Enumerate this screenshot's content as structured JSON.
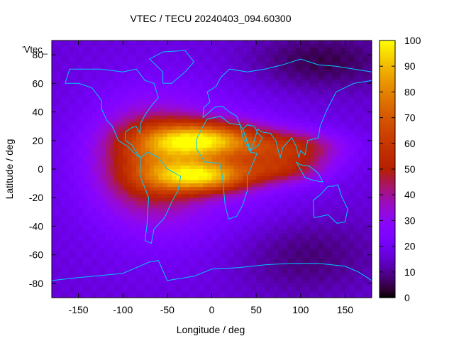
{
  "chart_data": {
    "type": "heatmap",
    "title": "VTEC / TECU 20240403_094.60300",
    "xlabel": "Longitude / deg",
    "ylabel": "Latitude / deg",
    "legend_label": "'Vtec_",
    "xlim": [
      -180,
      180
    ],
    "ylim": [
      -90,
      90
    ],
    "xticks": [
      -150,
      -100,
      -50,
      0,
      50,
      100,
      150
    ],
    "xtick_labels": [
      "-150",
      "-100",
      "-50",
      "0",
      "50",
      "100",
      "150"
    ],
    "yticks": [
      -80,
      -60,
      -40,
      -20,
      0,
      20,
      40,
      60,
      80
    ],
    "ytick_labels": [
      "-80",
      "-60",
      "-40",
      "-20",
      "0",
      "20",
      "40",
      "60",
      "80"
    ],
    "colorbar": {
      "range": [
        0,
        100
      ],
      "ticks": [
        0,
        10,
        20,
        30,
        40,
        50,
        60,
        70,
        80,
        90,
        100
      ],
      "tick_labels": [
        "0",
        "10",
        "20",
        "30",
        "40",
        "50",
        "60",
        "70",
        "80",
        "90",
        "100"
      ],
      "palette": "black-purple-red-orange-yellow"
    },
    "grid": {
      "lon_step": 5,
      "lat_step": 2.5,
      "background_tecu": 16,
      "features": [
        {
          "name": "equatorial-anomaly-north-atlantic",
          "lon": -10,
          "lat": 20,
          "sigma_lon": 45,
          "sigma_lat": 9,
          "tecu": 65
        },
        {
          "name": "equatorial-anomaly-south-atlantic",
          "lon": -10,
          "lat": -5,
          "sigma_lon": 40,
          "sigma_lat": 8,
          "tecu": 60
        },
        {
          "name": "americas-daytime-bulge",
          "lon": -70,
          "lat": 5,
          "sigma_lon": 40,
          "sigma_lat": 25,
          "tecu": 35
        },
        {
          "name": "indian-ocean-band",
          "lon": 90,
          "lat": 15,
          "sigma_lon": 40,
          "sigma_lat": 8,
          "tecu": 30
        },
        {
          "name": "indian-ocean-south-band",
          "lon": 80,
          "lat": 0,
          "sigma_lon": 35,
          "sigma_lat": 7,
          "tecu": 25
        },
        {
          "name": "dayside-glow",
          "lon": -20,
          "lat": 0,
          "sigma_lon": 90,
          "sigma_lat": 45,
          "tecu": 12
        },
        {
          "name": "north-polar-low",
          "lon": 120,
          "lat": 75,
          "sigma_lon": 60,
          "sigma_lat": 15,
          "tecu": -12
        },
        {
          "name": "southern-ocean-low",
          "lon": 100,
          "lat": -60,
          "sigma_lon": 60,
          "sigma_lat": 20,
          "tecu": -10
        }
      ]
    }
  },
  "colors": {
    "coastline": "#00c8ff",
    "axes": "#000000"
  }
}
